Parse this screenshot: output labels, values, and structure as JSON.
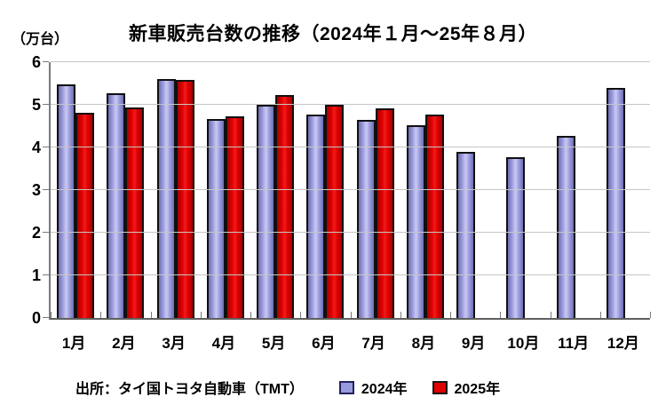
{
  "chart_data": {
    "type": "bar",
    "title": "新車販売台数の推移（2024年１月～25年８月）",
    "unit_label": "（万台）",
    "source": "出所：タイ国トヨタ自動車（TMT）",
    "categories": [
      "1月",
      "2月",
      "3月",
      "4月",
      "5月",
      "6月",
      "7月",
      "8月",
      "9月",
      "10月",
      "11月",
      "12月"
    ],
    "series": [
      {
        "name": "2024年",
        "color": "#9999dd",
        "values": [
          5.48,
          5.28,
          5.61,
          4.67,
          4.99,
          4.77,
          4.64,
          4.52,
          3.9,
          3.77,
          4.27,
          5.4
        ]
      },
      {
        "name": "2025年",
        "color": "#e00000",
        "values": [
          4.81,
          4.93,
          5.58,
          4.72,
          5.22,
          5.01,
          4.91,
          4.77,
          null,
          null,
          null,
          null
        ]
      }
    ],
    "ylim": [
      0,
      6
    ],
    "yticks": [
      0,
      1,
      2,
      3,
      4,
      5,
      6
    ],
    "grid": true,
    "legend_position": "bottom"
  }
}
